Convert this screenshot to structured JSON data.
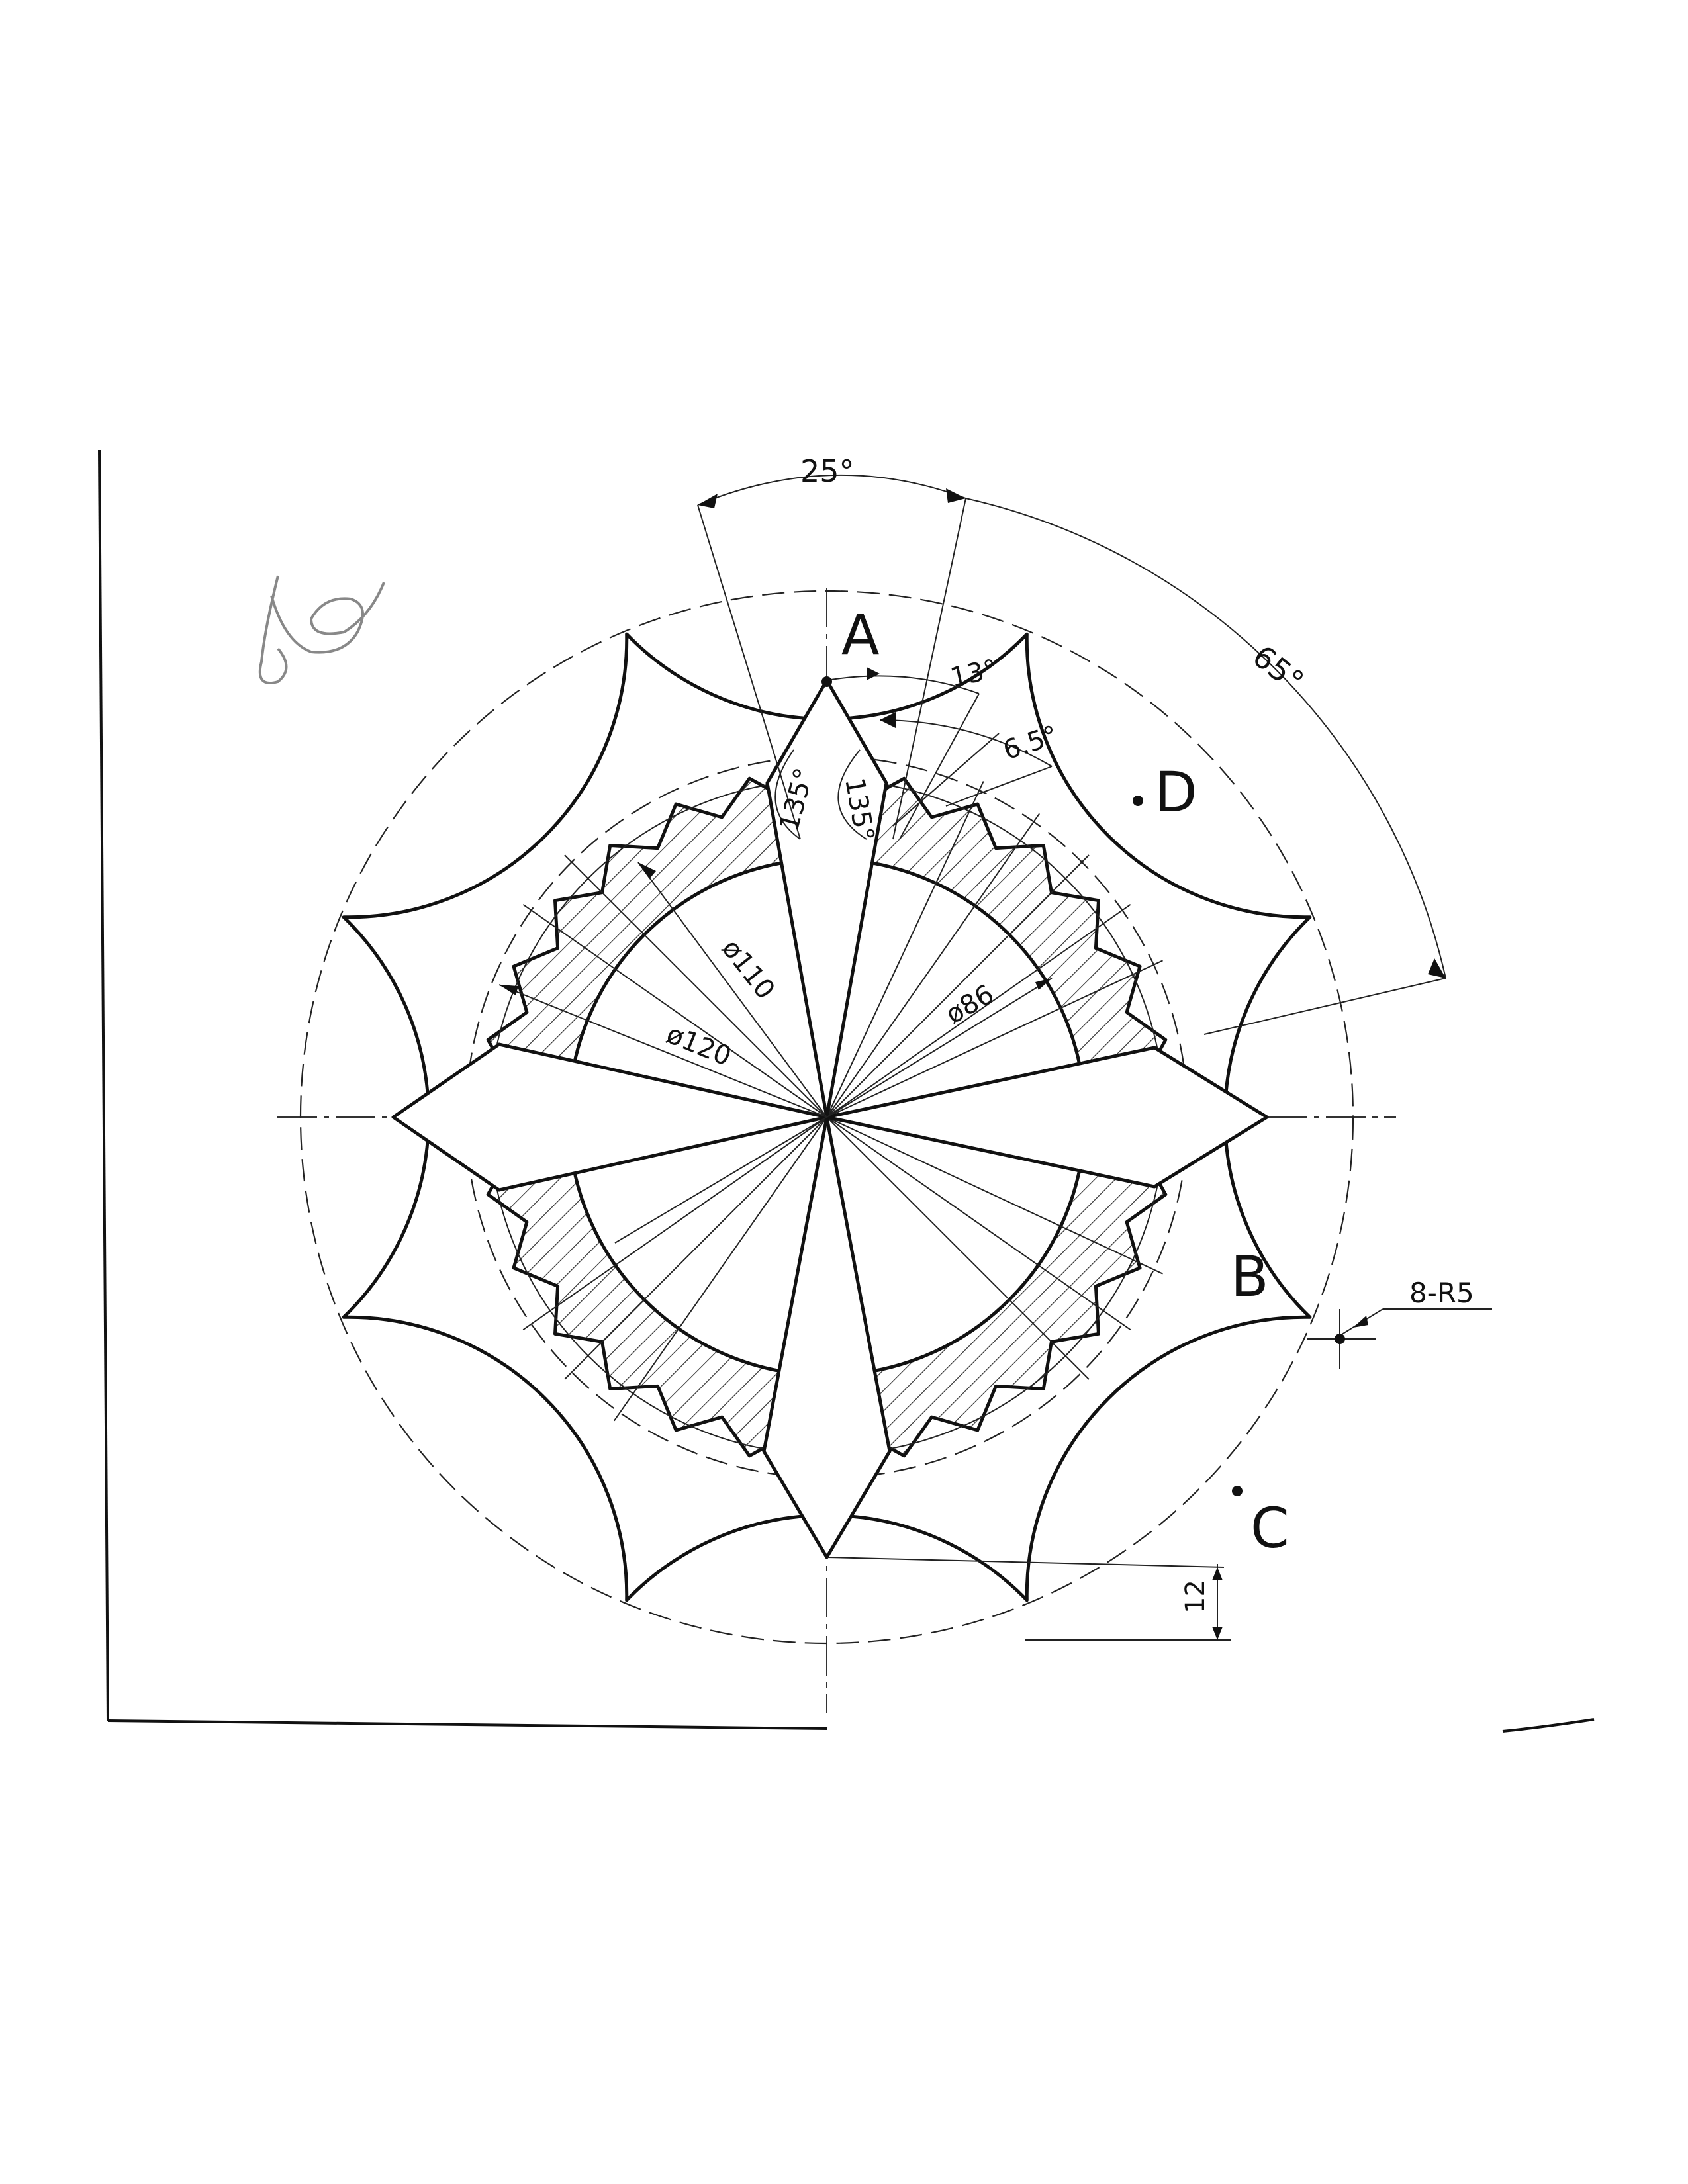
{
  "point_labels": {
    "a": "A",
    "b": "B",
    "c": "C",
    "d": "D"
  },
  "dimensions": {
    "angle_top": "25°",
    "angle_right": "65°",
    "angle_small": "13°",
    "angle_tooth": "6.5°",
    "angle_left": "135°",
    "angle_right_inner": "135°",
    "dia_110": "ø110",
    "dia_120": "ø120",
    "dia_86": "ø86",
    "radius_note": "8-R5",
    "offset": "12"
  }
}
